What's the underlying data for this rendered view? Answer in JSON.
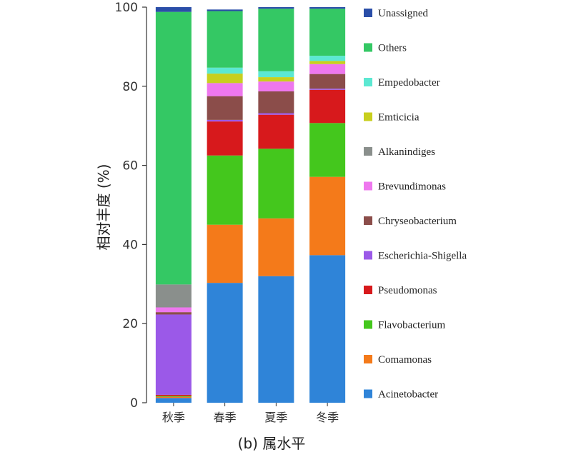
{
  "chart_data": {
    "type": "bar",
    "stacked": true,
    "categories": [
      "秋季",
      "春季",
      "夏季",
      "冬季"
    ],
    "ylabel": "相对丰度 (%)",
    "caption": "(b) 属水平",
    "ylim": [
      0,
      100
    ],
    "yticks": [
      0,
      20,
      40,
      60,
      80,
      100
    ],
    "legend_position": "right",
    "series": [
      {
        "name": "Acinetobacter",
        "color": "#2f84d8",
        "values": [
          1.2,
          30.3,
          32.0,
          37.3
        ]
      },
      {
        "name": "Comamonas",
        "color": "#f47a1a",
        "values": [
          0.3,
          14.7,
          14.6,
          19.8
        ]
      },
      {
        "name": "Flavobacterium",
        "color": "#44c71d",
        "values": [
          0.2,
          17.5,
          17.6,
          13.6
        ]
      },
      {
        "name": "Pseudomonas",
        "color": "#d7191c",
        "values": [
          0.3,
          8.6,
          8.6,
          8.4
        ]
      },
      {
        "name": "Escherichia-Shigella",
        "color": "#9b59e8",
        "values": [
          20.3,
          0.4,
          0.4,
          0.3
        ]
      },
      {
        "name": "Chryseobacterium",
        "color": "#8b4d4a",
        "values": [
          0.6,
          6.0,
          5.5,
          3.7
        ]
      },
      {
        "name": "Brevundimonas",
        "color": "#ee77ee",
        "values": [
          1.2,
          3.3,
          2.5,
          2.5
        ]
      },
      {
        "name": "Alkanindiges",
        "color": "#8a8f8c",
        "values": [
          5.8,
          0.0,
          0.0,
          0.0
        ]
      },
      {
        "name": "Emticicia",
        "color": "#c8cf1e",
        "values": [
          0.0,
          2.4,
          1.1,
          0.8
        ]
      },
      {
        "name": "Empedobacter",
        "color": "#5ce8d2",
        "values": [
          0.0,
          1.5,
          1.5,
          1.3
        ]
      },
      {
        "name": "Others",
        "color": "#34c864",
        "values": [
          68.9,
          14.3,
          15.8,
          11.9
        ]
      },
      {
        "name": "Unassigned",
        "color": "#2a4ea8",
        "values": [
          1.2,
          0.4,
          0.4,
          0.4
        ]
      }
    ]
  }
}
